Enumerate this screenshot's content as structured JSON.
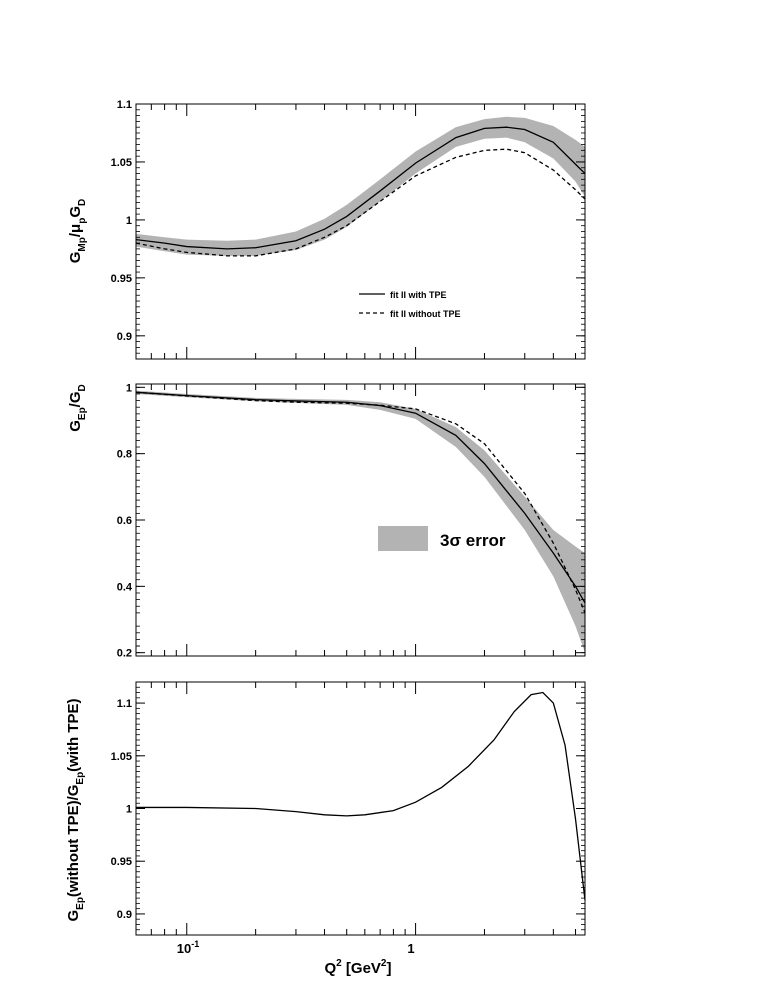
{
  "chart_data": [
    {
      "type": "line",
      "panel": "top",
      "ylabel": {
        "base": "G",
        "sub1": "Mp",
        "mid": "/μ",
        "sub2": "p",
        "tail": "G",
        "sub3": "D"
      },
      "ylim": [
        0.88,
        1.1
      ],
      "yticks": [
        0.9,
        0.95,
        1,
        1.05,
        1.1
      ],
      "ytick_labels": [
        "0.9",
        "0.95",
        "1",
        "1.05",
        "1.1"
      ],
      "xlim": [
        0.06,
        5.5
      ],
      "xscale": "log",
      "legend": {
        "placement": "center-right",
        "entries": [
          {
            "label": "fit II with TPE",
            "style": "solid"
          },
          {
            "label": "fit II without TPE",
            "style": "dashed"
          }
        ]
      },
      "band": {
        "name": "3σ error",
        "x": [
          0.06,
          0.08,
          0.1,
          0.15,
          0.2,
          0.3,
          0.4,
          0.5,
          0.7,
          1.0,
          1.5,
          2.0,
          2.5,
          3.0,
          4.0,
          5.0,
          5.5
        ],
        "lower": [
          0.977,
          0.973,
          0.97,
          0.969,
          0.969,
          0.974,
          0.983,
          0.994,
          1.016,
          1.04,
          1.063,
          1.07,
          1.071,
          1.067,
          1.053,
          1.033,
          1.02
        ],
        "upper": [
          0.988,
          0.985,
          0.983,
          0.982,
          0.983,
          0.99,
          1.001,
          1.013,
          1.035,
          1.059,
          1.08,
          1.087,
          1.089,
          1.088,
          1.081,
          1.069,
          1.063
        ]
      },
      "series": [
        {
          "name": "fit II with TPE",
          "style": "solid",
          "x": [
            0.06,
            0.08,
            0.1,
            0.15,
            0.2,
            0.3,
            0.4,
            0.5,
            0.7,
            1.0,
            1.5,
            2.0,
            2.5,
            3.0,
            4.0,
            5.0,
            5.5
          ],
          "y": [
            0.983,
            0.98,
            0.977,
            0.975,
            0.976,
            0.982,
            0.992,
            1.003,
            1.025,
            1.049,
            1.071,
            1.079,
            1.08,
            1.078,
            1.067,
            1.048,
            1.04
          ]
        },
        {
          "name": "fit II without TPE",
          "style": "dashed",
          "x": [
            0.06,
            0.08,
            0.1,
            0.15,
            0.2,
            0.3,
            0.4,
            0.5,
            0.7,
            1.0,
            1.5,
            2.0,
            2.5,
            3.0,
            4.0,
            5.0,
            5.5
          ],
          "y": [
            0.98,
            0.975,
            0.972,
            0.969,
            0.969,
            0.975,
            0.985,
            0.995,
            1.016,
            1.038,
            1.054,
            1.06,
            1.061,
            1.058,
            1.043,
            1.026,
            1.018
          ]
        }
      ]
    },
    {
      "type": "line",
      "panel": "middle",
      "ylabel": {
        "base": "G",
        "sub1": "Ep",
        "mid": "/G",
        "sub2": "D"
      },
      "ylim": [
        0.19,
        1.01
      ],
      "yticks": [
        0.2,
        0.4,
        0.6,
        0.8,
        1
      ],
      "ytick_labels": [
        "0.2",
        "0.4",
        "0.6",
        "0.8",
        "1"
      ],
      "xlim": [
        0.06,
        5.5
      ],
      "xscale": "log",
      "legend": {
        "placement": "center-right",
        "entries": [
          {
            "label": "3σ error",
            "style": "band"
          }
        ]
      },
      "band": {
        "name": "3σ error",
        "x": [
          0.06,
          0.1,
          0.2,
          0.3,
          0.5,
          0.7,
          1.0,
          1.5,
          2.0,
          3.0,
          4.0,
          5.0,
          5.5
        ],
        "lower": [
          0.98,
          0.97,
          0.958,
          0.953,
          0.947,
          0.932,
          0.905,
          0.82,
          0.73,
          0.57,
          0.43,
          0.28,
          0.2
        ],
        "upper": [
          0.99,
          0.98,
          0.968,
          0.965,
          0.962,
          0.955,
          0.935,
          0.88,
          0.81,
          0.67,
          0.57,
          0.52,
          0.5
        ]
      },
      "series": [
        {
          "name": "fit II with TPE",
          "style": "solid",
          "x": [
            0.06,
            0.1,
            0.2,
            0.3,
            0.5,
            0.7,
            1.0,
            1.5,
            2.0,
            3.0,
            4.0,
            5.0,
            5.5
          ],
          "y": [
            0.985,
            0.975,
            0.963,
            0.959,
            0.955,
            0.945,
            0.922,
            0.855,
            0.77,
            0.62,
            0.5,
            0.4,
            0.35
          ]
        },
        {
          "name": "fit II without TPE",
          "style": "dashed",
          "x": [
            0.06,
            0.1,
            0.2,
            0.3,
            0.5,
            0.7,
            1.0,
            1.5,
            2.0,
            3.0,
            4.0,
            5.0,
            5.5
          ],
          "y": [
            0.985,
            0.974,
            0.96,
            0.955,
            0.952,
            0.946,
            0.935,
            0.89,
            0.83,
            0.68,
            0.53,
            0.39,
            0.32
          ]
        }
      ]
    },
    {
      "type": "line",
      "panel": "bottom",
      "ylabel": {
        "a": "G",
        "s1": "Ep",
        "b": "(without TPE)/G",
        "s2": "Ep",
        "c": "(with TPE)"
      },
      "xlabel": {
        "base": "Q",
        "sup1": "2",
        "mid": " [GeV",
        "sup2": "2",
        "tail": "]"
      },
      "ylim": [
        0.88,
        1.12
      ],
      "yticks": [
        0.9,
        0.95,
        1,
        1.05,
        1.1
      ],
      "ytick_labels": [
        "0.9",
        "0.95",
        "1",
        "1.05",
        "1.1"
      ],
      "xlim": [
        0.06,
        5.5
      ],
      "xscale": "log",
      "xtick_labels": {
        "major1": "10",
        "major1_exp": "-1",
        "major2": "1"
      },
      "series": [
        {
          "style": "solid",
          "x": [
            0.06,
            0.1,
            0.2,
            0.3,
            0.4,
            0.5,
            0.6,
            0.8,
            1.0,
            1.3,
            1.7,
            2.2,
            2.7,
            3.2,
            3.6,
            4.0,
            4.5,
            5.0,
            5.5
          ],
          "y": [
            1.001,
            1.001,
            1.0,
            0.997,
            0.994,
            0.993,
            0.994,
            0.998,
            1.006,
            1.02,
            1.04,
            1.065,
            1.092,
            1.108,
            1.11,
            1.1,
            1.06,
            0.99,
            0.913
          ]
        }
      ]
    }
  ]
}
